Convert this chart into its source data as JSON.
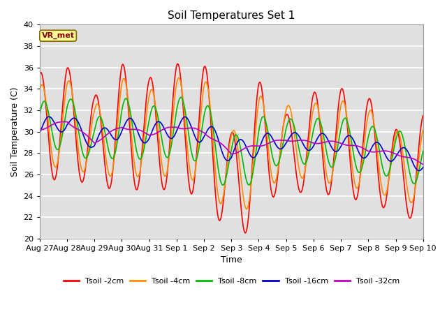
{
  "title": "Soil Temperatures Set 1",
  "xlabel": "Time",
  "ylabel": "Soil Temperature (C)",
  "ylim": [
    20,
    40
  ],
  "annotation": "VR_met",
  "bg_color": "#e0e0e0",
  "grid_color": "#ffffff",
  "x_tick_labels": [
    "Aug 27",
    "Aug 28",
    "Aug 29",
    "Aug 30",
    "Aug 31",
    "Sep 1",
    "Sep 2",
    "Sep 3",
    "Sep 4",
    "Sep 5",
    "Sep 6",
    "Sep 7",
    "Sep 8",
    "Sep 9",
    "Sep 10"
  ],
  "series_labels": [
    "Tsoil -2cm",
    "Tsoil -4cm",
    "Tsoil -8cm",
    "Tsoil -16cm",
    "Tsoil -32cm"
  ],
  "series_colors": [
    "#ff0000",
    "#ff8c00",
    "#00bb00",
    "#0000cc",
    "#bb00bb"
  ],
  "yticks": [
    20,
    22,
    24,
    26,
    28,
    30,
    32,
    34,
    36,
    38,
    40
  ],
  "n_points": 2000,
  "time_days": 14
}
